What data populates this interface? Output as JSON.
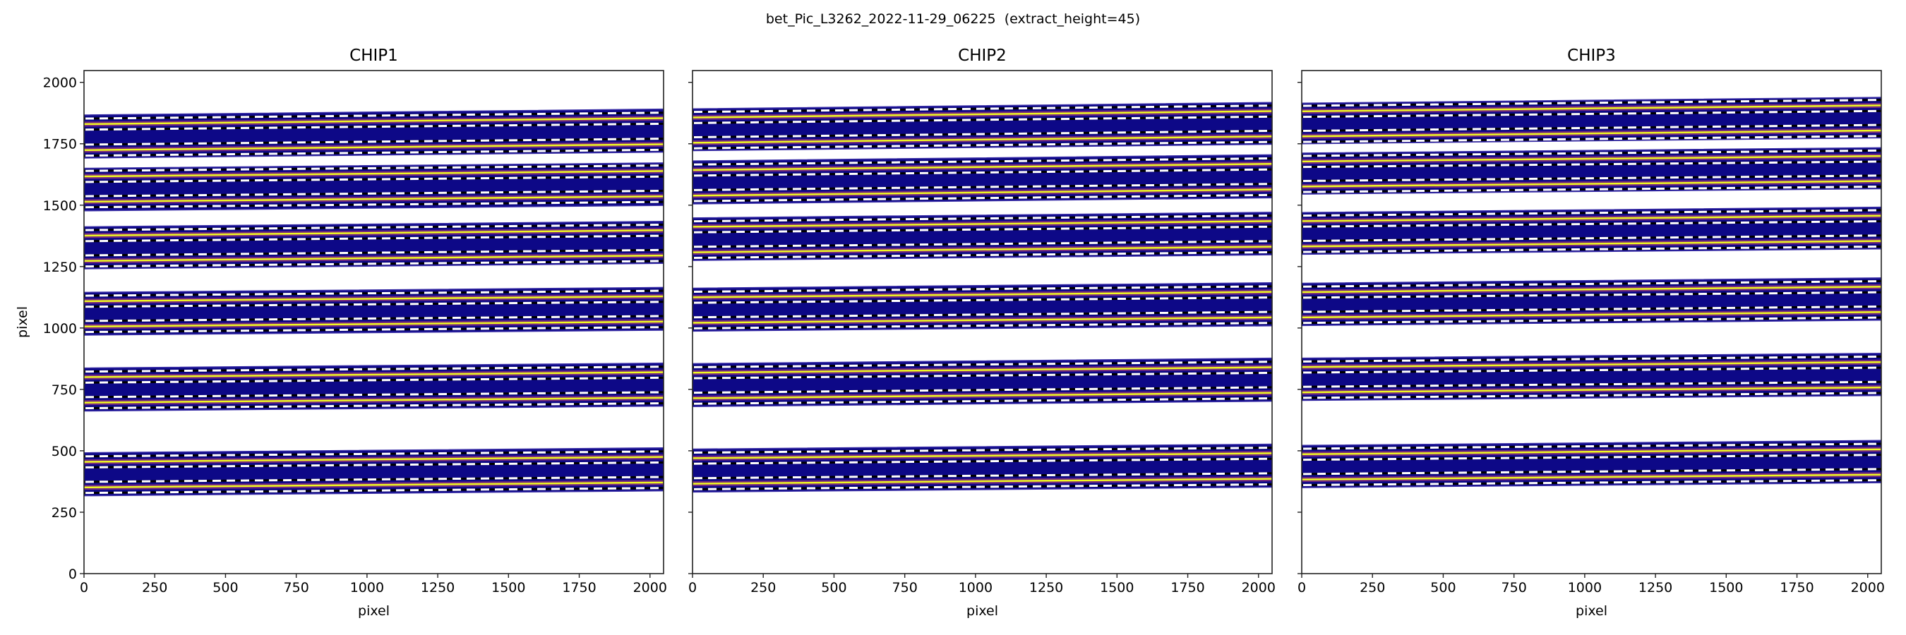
{
  "figure": {
    "suptitle": "bet_Pic_L3262_2022-11-29_06225  (extract_height=45)"
  },
  "colors": {
    "background_band": "#0d0887",
    "band_edge": "#3b2fa8",
    "trace_glow": "#cc4778",
    "trace_core": "#f0f921",
    "extraction_line": "#000000",
    "extraction_dash": "#ffffff"
  },
  "chart_data": [
    {
      "type": "heatmap",
      "title": "CHIP1",
      "xlabel": "pixel",
      "ylabel": "pixel",
      "xlim": [
        0,
        2048
      ],
      "ylim": [
        0,
        2048
      ],
      "xticks": [
        "0",
        "250",
        "500",
        "750",
        "1000",
        "1250",
        "1500",
        "1750",
        "2000"
      ],
      "yticks": [
        "0",
        "250",
        "500",
        "750",
        "1000",
        "1250",
        "1500",
        "1750",
        "2000"
      ],
      "show_ytick_labels": true,
      "extract_height": 45,
      "orders": [
        {
          "lower_edge": [
            317,
            337
          ],
          "upper_edge": [
            492,
            512
          ],
          "traces": [
            [
              351,
              371
            ],
            [
              455,
              475
            ]
          ]
        },
        {
          "lower_edge": [
            662,
            682
          ],
          "upper_edge": [
            837,
            857
          ],
          "traces": [
            [
              696,
              716
            ],
            [
              800,
              820
            ]
          ]
        },
        {
          "lower_edge": [
            971,
            991
          ],
          "upper_edge": [
            1145,
            1165
          ],
          "traces": [
            [
              1006,
              1026
            ],
            [
              1109,
              1129
            ]
          ]
        },
        {
          "lower_edge": [
            1241,
            1263
          ],
          "upper_edge": [
            1412,
            1434
          ],
          "traces": [
            [
              1273,
              1295
            ],
            [
              1376,
              1398
            ]
          ]
        },
        {
          "lower_edge": [
            1477,
            1499
          ],
          "upper_edge": [
            1650,
            1672
          ],
          "traces": [
            [
              1514,
              1536
            ],
            [
              1617,
              1639
            ]
          ]
        },
        {
          "lower_edge": [
            1692,
            1716
          ],
          "upper_edge": [
            1867,
            1891
          ],
          "traces": [
            [
              1724,
              1748
            ],
            [
              1830,
              1854
            ]
          ]
        }
      ]
    },
    {
      "type": "heatmap",
      "title": "CHIP2",
      "xlabel": "pixel",
      "ylabel": "",
      "xlim": [
        0,
        2048
      ],
      "ylim": [
        0,
        2048
      ],
      "xticks": [
        "0",
        "250",
        "500",
        "750",
        "1000",
        "1250",
        "1500",
        "1750",
        "2000"
      ],
      "yticks": [],
      "show_ytick_labels": false,
      "extract_height": 45,
      "orders": [
        {
          "lower_edge": [
            332,
            352
          ],
          "upper_edge": [
            507,
            527
          ],
          "traces": [
            [
              366,
              386
            ],
            [
              470,
              490
            ]
          ]
        },
        {
          "lower_edge": [
            680,
            702
          ],
          "upper_edge": [
            855,
            877
          ],
          "traces": [
            [
              714,
              736
            ],
            [
              818,
              840
            ]
          ]
        },
        {
          "lower_edge": [
            987,
            1009
          ],
          "upper_edge": [
            1162,
            1184
          ],
          "traces": [
            [
              1021,
              1043
            ],
            [
              1125,
              1147
            ]
          ]
        },
        {
          "lower_edge": [
            1275,
            1298
          ],
          "upper_edge": [
            1448,
            1471
          ],
          "traces": [
            [
              1308,
              1331
            ],
            [
              1412,
              1435
            ]
          ]
        },
        {
          "lower_edge": [
            1505,
            1530
          ],
          "upper_edge": [
            1680,
            1705
          ],
          "traces": [
            [
              1539,
              1564
            ],
            [
              1643,
              1668
            ]
          ]
        },
        {
          "lower_edge": [
            1722,
            1748
          ],
          "upper_edge": [
            1892,
            1918
          ],
          "traces": [
            [
              1754,
              1780
            ],
            [
              1857,
              1883
            ]
          ]
        }
      ]
    },
    {
      "type": "heatmap",
      "title": "CHIP3",
      "xlabel": "pixel",
      "ylabel": "",
      "xlim": [
        0,
        2048
      ],
      "ylim": [
        0,
        2048
      ],
      "xticks": [
        "0",
        "250",
        "500",
        "750",
        "1000",
        "1250",
        "1500",
        "1750",
        "2000"
      ],
      "yticks": [],
      "show_ytick_labels": false,
      "extract_height": 45,
      "orders": [
        {
          "lower_edge": [
            350,
            370
          ],
          "upper_edge": [
            522,
            542
          ],
          "traces": [
            [
              383,
              403
            ],
            [
              486,
              506
            ]
          ]
        },
        {
          "lower_edge": [
            705,
            725
          ],
          "upper_edge": [
            877,
            897
          ],
          "traces": [
            [
              738,
              758
            ],
            [
              841,
              861
            ]
          ]
        },
        {
          "lower_edge": [
            1010,
            1032
          ],
          "upper_edge": [
            1182,
            1204
          ],
          "traces": [
            [
              1043,
              1065
            ],
            [
              1146,
              1168
            ]
          ]
        },
        {
          "lower_edge": [
            1300,
            1322
          ],
          "upper_edge": [
            1470,
            1492
          ],
          "traces": [
            [
              1332,
              1354
            ],
            [
              1435,
              1457
            ]
          ]
        },
        {
          "lower_edge": [
            1545,
            1567
          ],
          "upper_edge": [
            1712,
            1734
          ],
          "traces": [
            [
              1576,
              1598
            ],
            [
              1678,
              1700
            ]
          ]
        },
        {
          "lower_edge": [
            1750,
            1774
          ],
          "upper_edge": [
            1915,
            1939
          ],
          "traces": [
            [
              1780,
              1804
            ],
            [
              1882,
              1906
            ]
          ]
        }
      ]
    }
  ]
}
